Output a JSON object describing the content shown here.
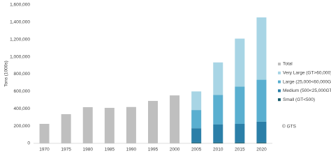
{
  "chart_data": {
    "type": "bar",
    "stacked": true,
    "y_label": "Tons (1000s)",
    "annotation": "© GTS",
    "categories": [
      "1970",
      "1975",
      "1980",
      "1985",
      "1990",
      "1995",
      "2000",
      "2005",
      "2010",
      "2015",
      "2020"
    ],
    "series": [
      {
        "name": "Total",
        "color": "#bfbfbf",
        "values": [
          225000,
          337000,
          418000,
          410000,
          420000,
          490000,
          554000,
          null,
          null,
          null,
          null
        ]
      },
      {
        "name": "Very Large (GT>60,000)",
        "color": "#a8d5e5",
        "values": [
          null,
          null,
          null,
          null,
          null,
          null,
          null,
          215000,
          375000,
          555000,
          720000
        ]
      },
      {
        "name": "Large (25,000<60,000GT)",
        "color": "#5aafd0",
        "values": [
          null,
          null,
          null,
          null,
          null,
          null,
          null,
          210000,
          340000,
          430000,
          485000
        ]
      },
      {
        "name": "Medium (500<25,000GT)",
        "color": "#2b7fa8",
        "values": [
          null,
          null,
          null,
          null,
          null,
          null,
          null,
          165000,
          210000,
          215000,
          240000
        ]
      },
      {
        "name": "Small (GT<500)",
        "color": "#1a5c6b",
        "values": [
          null,
          null,
          null,
          null,
          null,
          null,
          null,
          10000,
          10000,
          10000,
          10000
        ]
      }
    ],
    "ylim": [
      0,
      1600000
    ],
    "yticks": [
      0,
      {
        "value": 200000,
        "label": "200,000"
      },
      {
        "value": 400000,
        "label": "400,000"
      },
      {
        "value": 600000,
        "label": "600,000"
      },
      {
        "value": 800000,
        "label": "800,000"
      },
      {
        "value": 1000000,
        "label": "1,000,000"
      },
      {
        "value": 1200000,
        "label": "1,200,000"
      },
      {
        "value": 1400000,
        "label": "1,400,000"
      },
      {
        "value": 1600000,
        "label": "1,600,000"
      }
    ],
    "grid": false,
    "legend": "right"
  }
}
